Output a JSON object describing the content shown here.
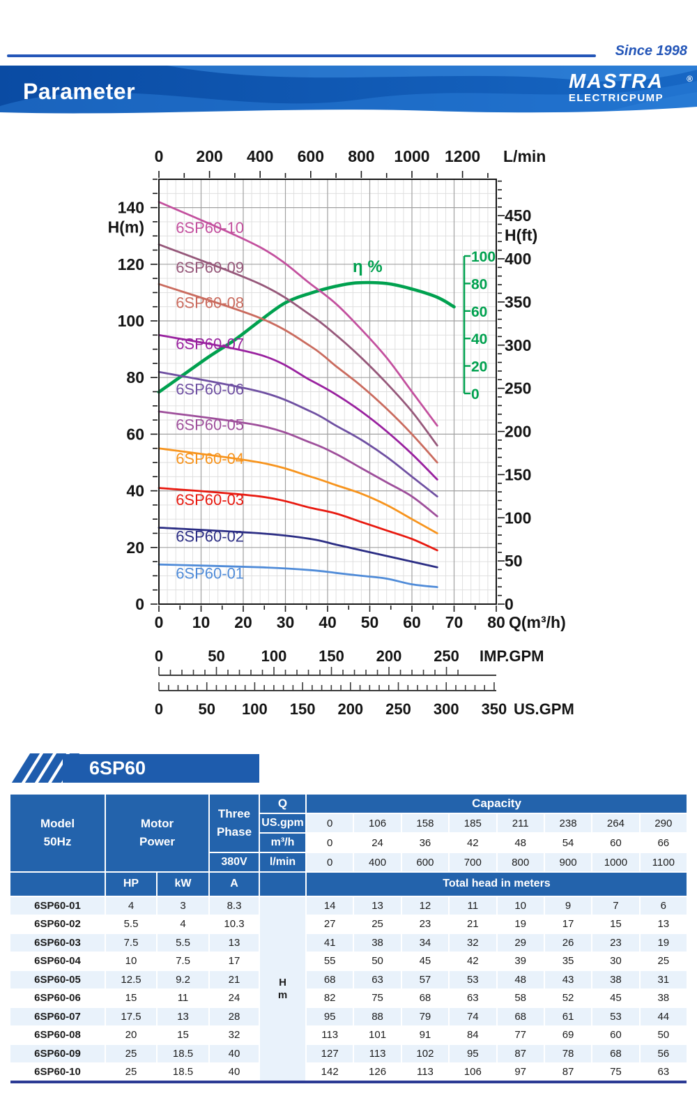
{
  "page": {
    "since": "Since 1998",
    "title": "Parameter",
    "brand": "MASTRA",
    "registered": "®",
    "brand_sub": "ELECTRICPUMP"
  },
  "banner": {
    "label": "6SP60"
  },
  "chart_data": {
    "type": "line",
    "x_label_top": "L/min",
    "x_ticks_top_lmin": [
      0,
      200,
      400,
      600,
      800,
      1000,
      1200
    ],
    "y_label_left": "H(m)",
    "y_ticks_left_m": [
      0,
      20,
      40,
      60,
      80,
      100,
      120,
      140
    ],
    "y_range_m": [
      0,
      150
    ],
    "y_label_right": "H(ft)",
    "y_ticks_right_ft": [
      0,
      50,
      100,
      150,
      200,
      250,
      300,
      350,
      400,
      450
    ],
    "x_label_bottom": "Q(m³/h)",
    "x_ticks_bottom_m3h": [
      0,
      10,
      20,
      30,
      40,
      50,
      60,
      70,
      80
    ],
    "x_range_m3h": [
      0,
      80
    ],
    "imp_gpm": {
      "label": "IMP.GPM",
      "ticks": [
        0,
        50,
        100,
        150,
        200,
        250
      ]
    },
    "us_gpm": {
      "label": "US.GPM",
      "ticks": [
        0,
        50,
        100,
        150,
        200,
        250,
        300,
        350
      ]
    },
    "efficiency": {
      "label": "η %",
      "axis_ticks": [
        0,
        20,
        40,
        60,
        80,
        100
      ],
      "color": "#00a14f",
      "points": [
        [
          0,
          1
        ],
        [
          6,
          14
        ],
        [
          12,
          27
        ],
        [
          18,
          39
        ],
        [
          24,
          53
        ],
        [
          30,
          66
        ],
        [
          36,
          73
        ],
        [
          42,
          78
        ],
        [
          47,
          80.5
        ],
        [
          54,
          80
        ],
        [
          60,
          76
        ],
        [
          66,
          70
        ],
        [
          70,
          63
        ]
      ]
    },
    "q_values_m3h": [
      0,
      24,
      36,
      42,
      48,
      54,
      60,
      66
    ],
    "series": [
      {
        "name": "6SP60-10",
        "color": "#c3509e",
        "heads_m": [
          142,
          126,
          113,
          106,
          97,
          87,
          75,
          63
        ],
        "label_at_m": 131
      },
      {
        "name": "6SP60-09",
        "color": "#96587a",
        "heads_m": [
          127,
          113,
          102,
          95,
          87,
          78,
          68,
          56
        ],
        "label_at_m": 117
      },
      {
        "name": "6SP60-08",
        "color": "#ca6b5e",
        "heads_m": [
          113,
          101,
          91,
          84,
          77,
          69,
          60,
          50
        ],
        "label_at_m": 104.5
      },
      {
        "name": "6SP60-07",
        "color": "#99219f",
        "heads_m": [
          95,
          88,
          79,
          74,
          68,
          61,
          53,
          44
        ],
        "label_at_m": 90
      },
      {
        "name": "6SP60-06",
        "color": "#6f50a2",
        "heads_m": [
          82,
          75,
          68,
          63,
          58,
          52,
          45,
          38
        ],
        "label_at_m": 74
      },
      {
        "name": "6SP60-05",
        "color": "#9e4f9b",
        "heads_m": [
          68,
          63,
          57,
          53,
          48,
          43,
          38,
          31
        ],
        "label_at_m": 61.5
      },
      {
        "name": "6SP60-04",
        "color": "#f7941d",
        "heads_m": [
          55,
          50,
          45,
          42,
          39,
          35,
          30,
          25
        ],
        "label_at_m": 49.5
      },
      {
        "name": "6SP60-03",
        "color": "#e8190f",
        "heads_m": [
          41,
          38,
          34,
          32,
          29,
          26,
          23,
          19
        ],
        "label_at_m": 35
      },
      {
        "name": "6SP60-02",
        "color": "#2b2d84",
        "heads_m": [
          27,
          25,
          23,
          21,
          19,
          17,
          15,
          13
        ],
        "label_at_m": 22
      },
      {
        "name": "6SP60-01",
        "color": "#4f8bd8",
        "heads_m": [
          14,
          13,
          12,
          11,
          10,
          9,
          7,
          6
        ],
        "label_at_m": 9
      }
    ]
  },
  "table": {
    "header": {
      "model_line1": "Model",
      "model_line2": "50Hz",
      "motor_line1": "Motor",
      "motor_line2": "Power",
      "three_phase_line1": "Three",
      "three_phase_line2": "Phase",
      "voltage": "380V",
      "q": "Q",
      "unit_rows": [
        "US.gpm",
        "m³/h",
        "l/min"
      ],
      "capacity": "Capacity",
      "hp": "HP",
      "kw": "kW",
      "amp": "A",
      "total_head": "Total head in meters",
      "head_unit_line1": "H",
      "head_unit_line2": "m"
    },
    "capacity_values": {
      "us_gpm": [
        "0",
        "106",
        "158",
        "185",
        "211",
        "238",
        "264",
        "290"
      ],
      "m3_h": [
        "0",
        "24",
        "36",
        "42",
        "48",
        "54",
        "60",
        "66"
      ],
      "l_min": [
        "0",
        "400",
        "600",
        "700",
        "800",
        "900",
        "1000",
        "1100"
      ]
    },
    "rows": [
      {
        "model": "6SP60-01",
        "hp": "4",
        "kw": "3",
        "amp": "8.3",
        "heads": [
          "14",
          "13",
          "12",
          "11",
          "10",
          "9",
          "7",
          "6"
        ]
      },
      {
        "model": "6SP60-02",
        "hp": "5.5",
        "kw": "4",
        "amp": "10.3",
        "heads": [
          "27",
          "25",
          "23",
          "21",
          "19",
          "17",
          "15",
          "13"
        ]
      },
      {
        "model": "6SP60-03",
        "hp": "7.5",
        "kw": "5.5",
        "amp": "13",
        "heads": [
          "41",
          "38",
          "34",
          "32",
          "29",
          "26",
          "23",
          "19"
        ]
      },
      {
        "model": "6SP60-04",
        "hp": "10",
        "kw": "7.5",
        "amp": "17",
        "heads": [
          "55",
          "50",
          "45",
          "42",
          "39",
          "35",
          "30",
          "25"
        ]
      },
      {
        "model": "6SP60-05",
        "hp": "12.5",
        "kw": "9.2",
        "amp": "21",
        "heads": [
          "68",
          "63",
          "57",
          "53",
          "48",
          "43",
          "38",
          "31"
        ]
      },
      {
        "model": "6SP60-06",
        "hp": "15",
        "kw": "11",
        "amp": "24",
        "heads": [
          "82",
          "75",
          "68",
          "63",
          "58",
          "52",
          "45",
          "38"
        ]
      },
      {
        "model": "6SP60-07",
        "hp": "17.5",
        "kw": "13",
        "amp": "28",
        "heads": [
          "95",
          "88",
          "79",
          "74",
          "68",
          "61",
          "53",
          "44"
        ]
      },
      {
        "model": "6SP60-08",
        "hp": "20",
        "kw": "15",
        "amp": "32",
        "heads": [
          "113",
          "101",
          "91",
          "84",
          "77",
          "69",
          "60",
          "50"
        ]
      },
      {
        "model": "6SP60-09",
        "hp": "25",
        "kw": "18.5",
        "amp": "40",
        "heads": [
          "127",
          "113",
          "102",
          "95",
          "87",
          "78",
          "68",
          "56"
        ]
      },
      {
        "model": "6SP60-10",
        "hp": "25",
        "kw": "18.5",
        "amp": "40",
        "heads": [
          "142",
          "126",
          "113",
          "106",
          "97",
          "87",
          "75",
          "63"
        ]
      }
    ]
  }
}
